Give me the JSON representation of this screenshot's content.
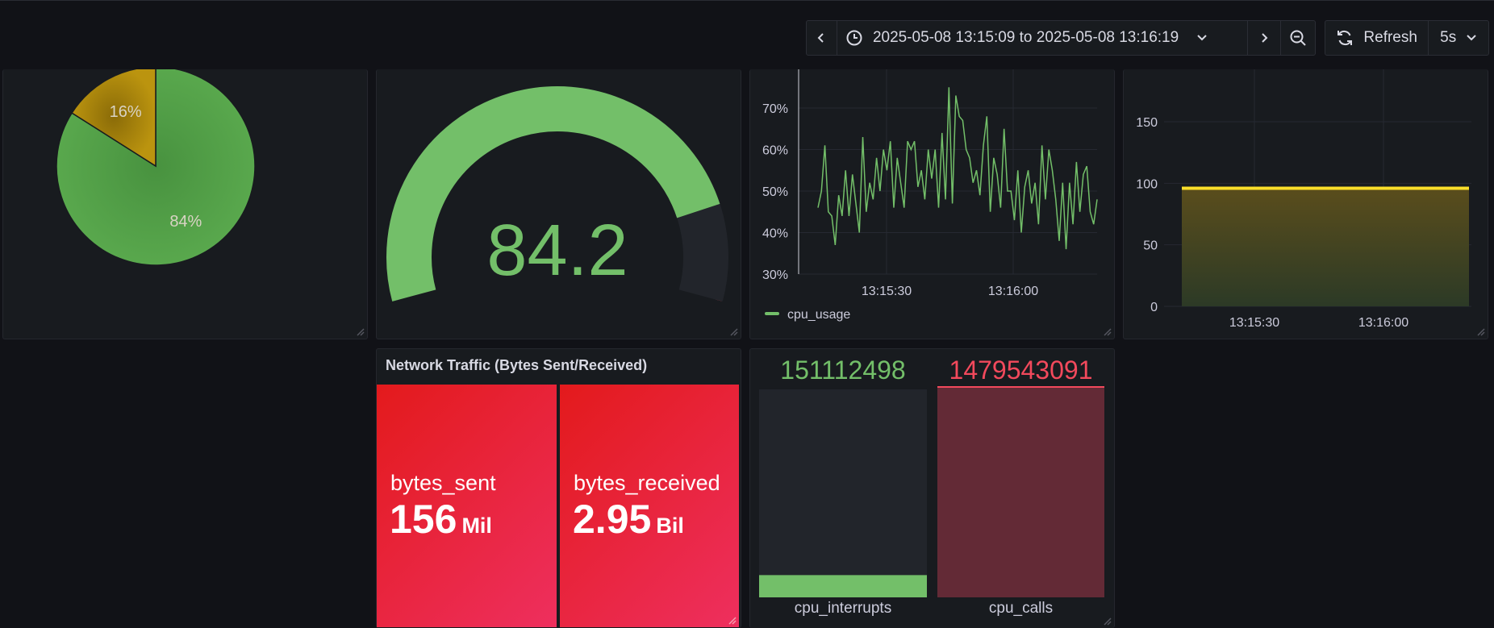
{
  "time_picker": {
    "range_text": "2025-05-08 13:15:09 to 2025-05-08 13:16:19",
    "refresh_label": "Refresh",
    "interval": "5s"
  },
  "pie_panel": {
    "chart_data": {
      "type": "pie",
      "slices": [
        {
          "value": 84,
          "label": "84%",
          "color": "#56a64b"
        },
        {
          "value": 16,
          "label": "16%",
          "color": "#b8900f"
        }
      ]
    }
  },
  "gauge_panel": {
    "value_text": "84.2",
    "value": 84.2,
    "min": 0,
    "max": 100,
    "thresholds": [
      {
        "from": 0,
        "to": 80,
        "color": "#73bf69"
      },
      {
        "from": 80,
        "to": 90,
        "color": "#ff9830"
      },
      {
        "from": 90,
        "to": 100,
        "color": "#f2495c"
      }
    ]
  },
  "cpu_panel": {
    "chart_data": {
      "type": "line",
      "yticks": [
        "30%",
        "40%",
        "50%",
        "60%",
        "70%"
      ],
      "ylim": [
        30,
        75
      ],
      "xticks": [
        "13:15:30",
        "13:16:00"
      ],
      "series": [
        {
          "name": "cpu_usage",
          "color": "#73bf69",
          "values": [
            46,
            50,
            61,
            45,
            44,
            37,
            49,
            44,
            55,
            44,
            54,
            47,
            40,
            63,
            45,
            52,
            48,
            58,
            50,
            60,
            55,
            62,
            46,
            58,
            52,
            46,
            62,
            60,
            62,
            51,
            55,
            48,
            60,
            53,
            60,
            46,
            64,
            48,
            75,
            47,
            73,
            68,
            67,
            60,
            58,
            52,
            55,
            49,
            61,
            68,
            45,
            58,
            54,
            46,
            65,
            50,
            50,
            43,
            55,
            40,
            51,
            55,
            47,
            52,
            42,
            61,
            48,
            60,
            55,
            48,
            38,
            52,
            36,
            52,
            42,
            57,
            45,
            54,
            56,
            45,
            42,
            48
          ]
        }
      ]
    }
  },
  "bar_panel": {
    "chart_data": {
      "type": "area",
      "yticks": [
        "0",
        "50",
        "100",
        "150"
      ],
      "ylim": [
        0,
        180
      ],
      "xticks": [
        "13:15:30",
        "13:16:00"
      ],
      "series": [
        {
          "values": [
            96,
            96
          ],
          "color": "#fade2a"
        }
      ]
    }
  },
  "network_panel": {
    "title": "Network Traffic (Bytes Sent/Received)",
    "tiles": [
      {
        "name": "bytes_sent",
        "value": "156",
        "unit": "Mil"
      },
      {
        "name": "bytes_received",
        "value": "2.95",
        "unit": "Bil"
      }
    ]
  },
  "bargauge_panel": {
    "chart_data": {
      "type": "bar",
      "categories": [
        "cpu_interrupts",
        "cpu_calls"
      ],
      "values": [
        151112498,
        1479543091
      ],
      "value_labels": [
        "151112498",
        "1479543091"
      ],
      "colors": [
        "#73bf69",
        "#f2495c"
      ]
    }
  }
}
